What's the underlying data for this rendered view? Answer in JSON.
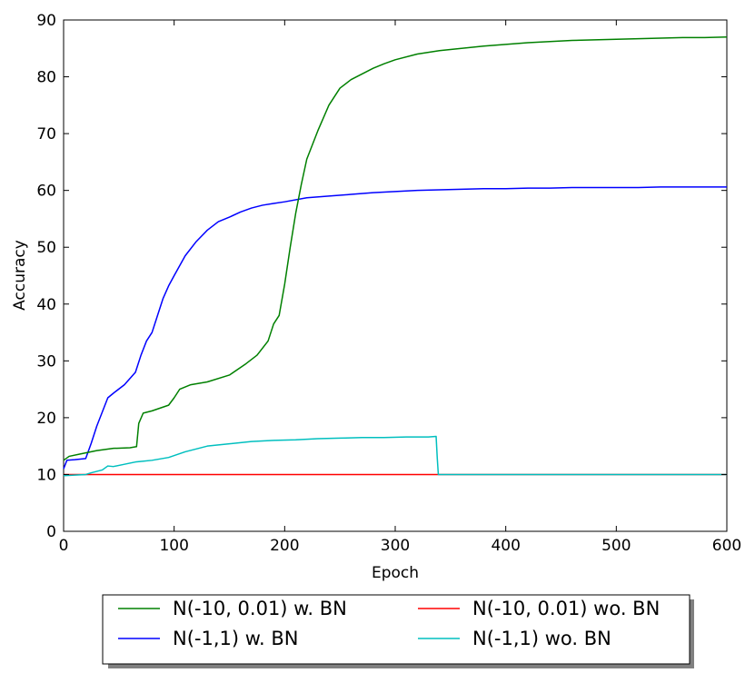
{
  "chart_data": {
    "type": "line",
    "xlabel": "Epoch",
    "ylabel": "Accuracy",
    "xlim": [
      0,
      600
    ],
    "ylim": [
      0,
      90
    ],
    "xticks": [
      0,
      100,
      200,
      300,
      400,
      500,
      600
    ],
    "yticks": [
      0,
      10,
      20,
      30,
      40,
      50,
      60,
      70,
      80,
      90
    ],
    "grid": false,
    "legend_position": "below",
    "series": [
      {
        "name": "N(-10, 0.01) w. BN",
        "color": "#008000",
        "x": [
          0,
          5,
          15,
          30,
          45,
          60,
          66,
          68,
          72,
          80,
          95,
          100,
          105,
          115,
          130,
          150,
          165,
          175,
          185,
          190,
          195,
          200,
          205,
          210,
          215,
          220,
          230,
          240,
          250,
          260,
          270,
          280,
          290,
          300,
          320,
          340,
          360,
          380,
          400,
          420,
          440,
          460,
          480,
          500,
          520,
          540,
          560,
          580,
          600
        ],
        "y": [
          12.5,
          13.2,
          13.6,
          14.2,
          14.6,
          14.7,
          14.9,
          19.0,
          20.8,
          21.2,
          22.2,
          23.5,
          25.0,
          25.8,
          26.3,
          27.5,
          29.5,
          31.0,
          33.5,
          36.5,
          38.0,
          43.5,
          50.0,
          56.0,
          61.0,
          65.5,
          70.5,
          75.0,
          78.0,
          79.5,
          80.5,
          81.5,
          82.3,
          83.0,
          84.0,
          84.6,
          85.0,
          85.4,
          85.7,
          86.0,
          86.2,
          86.4,
          86.5,
          86.6,
          86.7,
          86.8,
          86.9,
          86.9,
          87.0
        ]
      },
      {
        "name": "N(-1,1) w. BN",
        "color": "#0000ff",
        "x": [
          0,
          3,
          10,
          20,
          25,
          30,
          35,
          40,
          45,
          55,
          65,
          70,
          75,
          80,
          85,
          90,
          95,
          100,
          110,
          120,
          130,
          140,
          150,
          160,
          170,
          180,
          190,
          200,
          220,
          240,
          260,
          280,
          300,
          320,
          340,
          360,
          380,
          400,
          420,
          440,
          460,
          480,
          500,
          520,
          540,
          560,
          580,
          600
        ],
        "y": [
          11.0,
          12.5,
          12.6,
          12.8,
          15.5,
          18.5,
          21.0,
          23.5,
          24.3,
          25.8,
          28.0,
          31.0,
          33.5,
          35.0,
          38.0,
          41.0,
          43.2,
          45.0,
          48.5,
          51.0,
          53.0,
          54.5,
          55.3,
          56.2,
          56.9,
          57.4,
          57.7,
          58.0,
          58.7,
          59.0,
          59.3,
          59.6,
          59.8,
          60.0,
          60.1,
          60.2,
          60.3,
          60.3,
          60.4,
          60.4,
          60.5,
          60.5,
          60.5,
          60.5,
          60.6,
          60.6,
          60.6,
          60.6
        ]
      },
      {
        "name": "N(-10, 0.01) wo. BN",
        "color": "#ff0000",
        "x": [
          0,
          600
        ],
        "y": [
          10.0,
          10.0
        ]
      },
      {
        "name": "N(-1,1) wo. BN",
        "color": "#00bfbf",
        "x": [
          0,
          20,
          25,
          35,
          40,
          45,
          55,
          65,
          80,
          95,
          110,
          130,
          150,
          170,
          190,
          210,
          230,
          250,
          270,
          290,
          310,
          330,
          337,
          338,
          339,
          400,
          500,
          600
        ],
        "y": [
          9.8,
          10.0,
          10.3,
          10.8,
          11.5,
          11.4,
          11.8,
          12.2,
          12.5,
          13.0,
          14.0,
          15.0,
          15.4,
          15.8,
          16.0,
          16.1,
          16.3,
          16.4,
          16.5,
          16.5,
          16.6,
          16.6,
          16.7,
          13.0,
          10.0,
          10.0,
          10.0,
          10.0
        ]
      }
    ]
  }
}
